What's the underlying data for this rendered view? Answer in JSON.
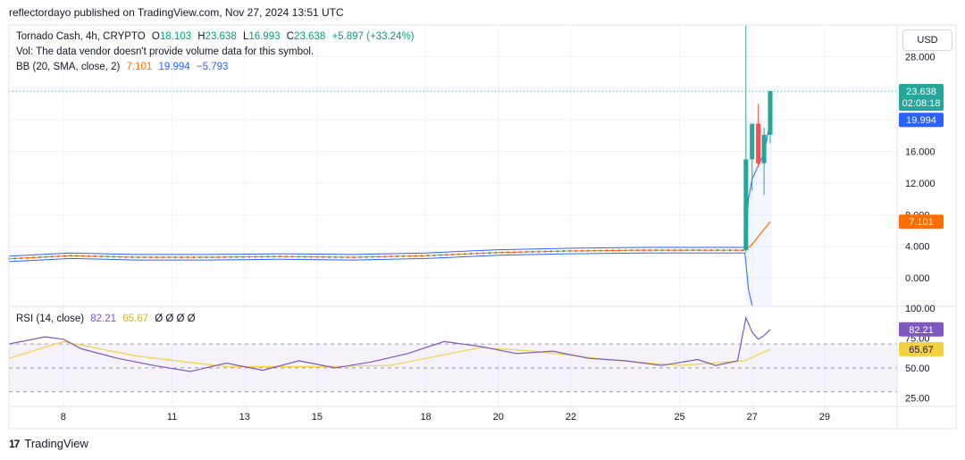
{
  "header": {
    "publisher_line": "reflectordayo published on TradingView.com, Nov 27, 2024 13:51 UTC"
  },
  "legend": {
    "symbol": "Tornado Cash, 4h, CRYPTO",
    "o_label": "O",
    "o_value": "18.103",
    "h_label": "H",
    "h_value": "23.638",
    "l_label": "L",
    "l_value": "16.993",
    "c_label": "C",
    "c_value": "23.638",
    "change": "+5.897 (+33.24%)",
    "vol_note": "Vol: The data vendor doesn't provide volume data for this symbol.",
    "bb_label": "BB (20, SMA, close, 2)",
    "bb_basis": "7.101",
    "bb_upper": "19.994",
    "bb_lower": "−5.793",
    "rsi_label": "RSI (14, close)",
    "rsi_value": "82.21",
    "rsi_ma": "65.67",
    "rsi_empty": "Ø Ø Ø Ø"
  },
  "currency_button": "USD",
  "footer": {
    "brand": "TradingView",
    "logo_glyph": "17"
  },
  "colors": {
    "up": "#26a69a",
    "down": "#ef5350",
    "bb_basis": "#ff6d00",
    "bb_band": "#2962ff",
    "rsi": "#7e57c2",
    "rsi_ma": "#f5d142"
  },
  "chart_data": [
    {
      "type": "candlestick",
      "title": "Tornado Cash, 4h, CRYPTO",
      "price_axis_labels": [
        "28.000",
        "24.000",
        "20.000",
        "16.000",
        "12.000",
        "8.000",
        "4.000",
        "0.000"
      ],
      "ylim": [
        -3.5,
        32
      ],
      "x_ticks": [
        {
          "label": "8",
          "day": 8
        },
        {
          "label": "11",
          "day": 11
        },
        {
          "label": "13",
          "day": 13
        },
        {
          "label": "15",
          "day": 15
        },
        {
          "label": "18",
          "day": 18
        },
        {
          "label": "20",
          "day": 20
        },
        {
          "label": "22",
          "day": 22
        },
        {
          "label": "25",
          "day": 25
        },
        {
          "label": "27",
          "day": 27
        },
        {
          "label": "29",
          "day": 29
        }
      ],
      "xlim_days": [
        6.5,
        31
      ],
      "baseline": [
        {
          "day": 6.5,
          "close": 2.4
        },
        {
          "day": 8.2,
          "close": 2.8
        },
        {
          "day": 10,
          "close": 2.6
        },
        {
          "day": 12,
          "close": 2.6
        },
        {
          "day": 14,
          "close": 2.7
        },
        {
          "day": 16,
          "close": 2.6
        },
        {
          "day": 18,
          "close": 2.8
        },
        {
          "day": 20,
          "close": 3.2
        },
        {
          "day": 22,
          "close": 3.4
        },
        {
          "day": 24,
          "close": 3.5
        },
        {
          "day": 26.8,
          "close": 3.5
        }
      ],
      "recent_candles": [
        {
          "day": 26.83,
          "o": 3.5,
          "h": 32,
          "l": 3.2,
          "c": 15.0
        },
        {
          "day": 27.0,
          "o": 15.0,
          "h": 17.5,
          "l": 11.0,
          "c": 19.5
        },
        {
          "day": 27.17,
          "o": 19.5,
          "h": 22.0,
          "l": 14.0,
          "c": 14.5
        },
        {
          "day": 27.33,
          "o": 14.5,
          "h": 19.0,
          "l": 10.5,
          "c": 18.1
        },
        {
          "day": 27.5,
          "o": 18.103,
          "h": 23.638,
          "l": 16.993,
          "c": 23.638
        }
      ],
      "bb_basis": [
        {
          "day": 26.8,
          "v": 3.5
        },
        {
          "day": 27.0,
          "v": 4.2
        },
        {
          "day": 27.2,
          "v": 5.4
        },
        {
          "day": 27.5,
          "v": 7.101
        }
      ],
      "bb_upper": [
        {
          "day": 26.8,
          "v": 3.8
        },
        {
          "day": 26.9,
          "v": 10.0
        },
        {
          "day": 27.0,
          "v": 12.5
        },
        {
          "day": 27.2,
          "v": 14.5
        },
        {
          "day": 27.35,
          "v": 16.0
        },
        {
          "day": 27.5,
          "v": 19.994
        }
      ],
      "bb_lower": [
        {
          "day": 26.8,
          "v": 3.2
        },
        {
          "day": 26.9,
          "v": -1.5
        },
        {
          "day": 27.0,
          "v": -3.5
        }
      ],
      "last_price": 23.638,
      "last_price_label": "23.638",
      "countdown": "02:08:18",
      "bb_upper_label": "19.994",
      "bb_basis_label": "7.101"
    },
    {
      "type": "line",
      "title": "RSI (14, close)",
      "axis_labels": [
        "100.00",
        "75.00",
        "50.00",
        "25.00"
      ],
      "ylim": [
        20,
        100
      ],
      "bands": [
        30,
        70
      ],
      "rsi": [
        {
          "day": 6.5,
          "v": 70
        },
        {
          "day": 7.5,
          "v": 76
        },
        {
          "day": 8.0,
          "v": 74
        },
        {
          "day": 8.5,
          "v": 66
        },
        {
          "day": 9.5,
          "v": 58
        },
        {
          "day": 10.5,
          "v": 52
        },
        {
          "day": 11.5,
          "v": 47
        },
        {
          "day": 12.5,
          "v": 54
        },
        {
          "day": 13.5,
          "v": 48
        },
        {
          "day": 14.5,
          "v": 56
        },
        {
          "day": 15.5,
          "v": 50
        },
        {
          "day": 16.5,
          "v": 55
        },
        {
          "day": 17.5,
          "v": 62
        },
        {
          "day": 18.5,
          "v": 72
        },
        {
          "day": 19.5,
          "v": 68
        },
        {
          "day": 20.5,
          "v": 62
        },
        {
          "day": 21.5,
          "v": 64
        },
        {
          "day": 22.5,
          "v": 58
        },
        {
          "day": 23.5,
          "v": 56
        },
        {
          "day": 24.5,
          "v": 52
        },
        {
          "day": 25.5,
          "v": 57
        },
        {
          "day": 26.0,
          "v": 52
        },
        {
          "day": 26.6,
          "v": 56
        },
        {
          "day": 26.83,
          "v": 92
        },
        {
          "day": 27.0,
          "v": 80
        },
        {
          "day": 27.17,
          "v": 74
        },
        {
          "day": 27.33,
          "v": 77
        },
        {
          "day": 27.5,
          "v": 82.21
        }
      ],
      "rsi_ma": [
        {
          "day": 6.5,
          "v": 58
        },
        {
          "day": 8.0,
          "v": 72
        },
        {
          "day": 10.0,
          "v": 60
        },
        {
          "day": 12.5,
          "v": 51
        },
        {
          "day": 15.0,
          "v": 51
        },
        {
          "day": 17.0,
          "v": 52
        },
        {
          "day": 19.5,
          "v": 67
        },
        {
          "day": 21.0,
          "v": 64
        },
        {
          "day": 23.0,
          "v": 57
        },
        {
          "day": 25.0,
          "v": 52
        },
        {
          "day": 26.8,
          "v": 56
        },
        {
          "day": 27.5,
          "v": 65.67
        }
      ],
      "rsi_label": "82.21",
      "rsi_ma_label": "65.67"
    }
  ]
}
